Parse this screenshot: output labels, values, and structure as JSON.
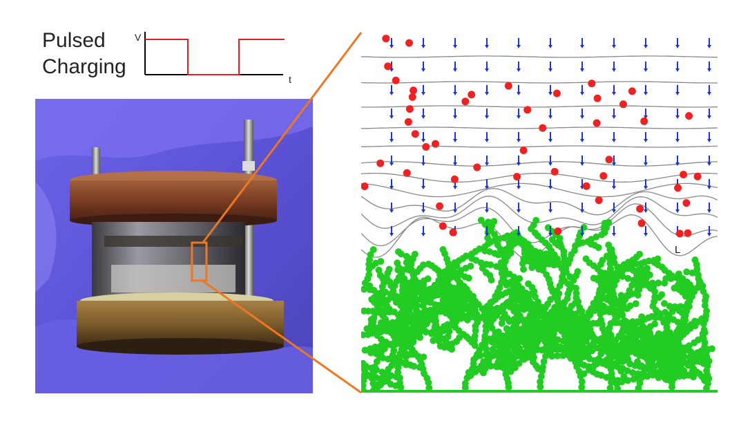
{
  "title": {
    "line1": "Pulsed",
    "line2": "Charging"
  },
  "waveform": {
    "y_axis_label": "V",
    "x_axis_label": "t",
    "signal_color": "#e02020",
    "axis_color": "#000000",
    "levels": [
      1,
      0,
      1
    ]
  },
  "photo": {
    "subject": "coin-cell battery test cell held in purple gloves"
  },
  "simulation": {
    "label": "L",
    "ion_color": "#ee2222",
    "dendrite_color": "#22cc22",
    "field_arrow_color": "#1a35d6",
    "contour_color": "#888888"
  },
  "zoom": {
    "color": "#ee7722"
  }
}
